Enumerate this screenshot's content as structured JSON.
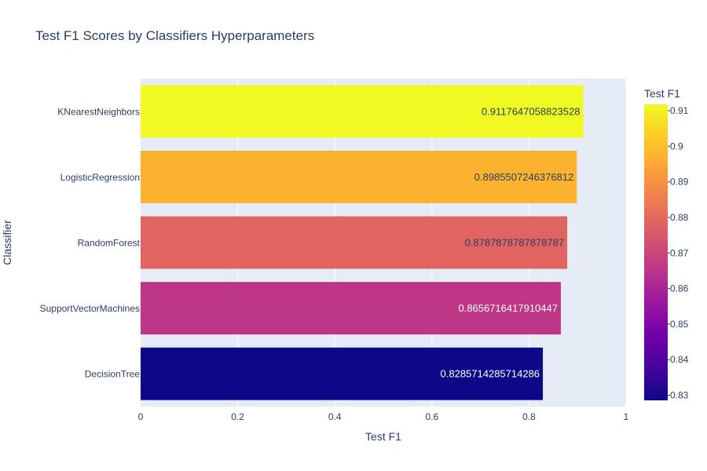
{
  "chart_data": {
    "type": "bar",
    "orientation": "horizontal",
    "title": "Test F1 Scores by Classifiers Hyperparameters",
    "xlabel": "Test F1",
    "ylabel": "Classifier",
    "xlim": [
      0,
      1
    ],
    "xticks": [
      "0",
      "0.2",
      "0.4",
      "0.6",
      "0.8",
      "1"
    ],
    "grid": true,
    "categories": [
      "DecisionTree",
      "SupportVectorMachines",
      "RandomForest",
      "LogisticRegression",
      "KNearestNeighbors"
    ],
    "values": [
      0.8285714285714286,
      0.8656716417910447,
      0.8787878787878787,
      0.8985507246376812,
      0.9117647058823528
    ],
    "value_labels": [
      "0.8285714285714286",
      "0.8656716417910447",
      "0.8787878787878787",
      "0.8985507246376812",
      "0.9117647058823528"
    ],
    "bar_colors": [
      "#0d0887",
      "#bd3786",
      "#e16462",
      "#fbb32f",
      "#f0f921"
    ],
    "label_colors": [
      "#ffffff",
      "#ffffff",
      "#2a3f5f",
      "#2a3f5f",
      "#2a3f5f"
    ],
    "colorbar": {
      "title": "Test F1",
      "range": [
        0.8285714285714286,
        0.9117647058823528
      ],
      "ticks": [
        "0.83",
        "0.84",
        "0.85",
        "0.86",
        "0.87",
        "0.88",
        "0.89",
        "0.9",
        "0.91"
      ],
      "colorscale": [
        "#0d0887",
        "#46039f",
        "#7201a8",
        "#9c179e",
        "#bd3786",
        "#d8576b",
        "#ed7953",
        "#fb9f3a",
        "#fdca26",
        "#f0f921"
      ]
    }
  }
}
